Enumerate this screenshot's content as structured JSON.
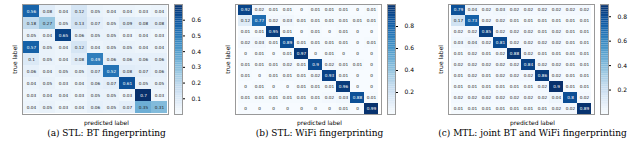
{
  "chart_data": [
    {
      "type": "heatmap",
      "title": "(a) STL: BT fingerprinting",
      "x_label": "predicted label",
      "y_label": "true label",
      "data_labels": true,
      "tick_labels": false,
      "colorbar": {
        "range": [
          0,
          0.7
        ],
        "ticks": [
          0.1,
          0.2,
          0.3,
          0.4,
          0.5,
          0.6
        ]
      },
      "cells": [
        [
          0.56,
          0.08,
          0.04,
          0.12,
          0.05,
          0.04,
          0.04,
          0.03,
          0.04
        ],
        [
          0.18,
          0.27,
          0.05,
          0.13,
          0.07,
          0.05,
          0.09,
          0.08,
          0.08
        ],
        [
          0.05,
          0.04,
          0.65,
          0.06,
          0.05,
          0.05,
          0.03,
          0.04,
          0.03
        ],
        [
          0.57,
          0.05,
          0.04,
          0.12,
          0.04,
          0.05,
          0.05,
          0.04,
          0.04
        ],
        [
          0.1,
          0.05,
          0.04,
          0.08,
          0.49,
          0.06,
          0.06,
          0.06,
          0.06
        ],
        [
          0.06,
          0.04,
          0.05,
          0.05,
          0.07,
          0.52,
          0.08,
          0.07,
          0.06
        ],
        [
          0.04,
          0.05,
          0.03,
          0.04,
          0.06,
          0.07,
          0.61,
          0.05,
          0.05
        ],
        [
          0.03,
          0.04,
          0.04,
          0.03,
          0.05,
          0.05,
          0.03,
          0.7,
          0.03
        ],
        [
          0.04,
          0.05,
          0.03,
          0.04,
          0.06,
          0.05,
          0.07,
          0.35,
          0.31
        ]
      ]
    },
    {
      "type": "heatmap",
      "title": "(b) STL: WiFi fingerprinting",
      "x_label": "predicted label",
      "y_label": "true label",
      "data_labels": true,
      "tick_labels": false,
      "colorbar": {
        "range": [
          0,
          1
        ],
        "ticks": [
          0.2,
          0.4,
          0.6,
          0.8
        ]
      },
      "cells": [
        [
          0.92,
          0.02,
          0.01,
          0.01,
          0,
          0.01,
          0.01,
          0.01,
          0,
          0.01
        ],
        [
          0.12,
          0.77,
          0.02,
          0.03,
          0.01,
          0.01,
          0.01,
          0.01,
          0.01,
          0.01
        ],
        [
          0.01,
          0.01,
          0.95,
          0.01,
          0,
          0.01,
          0,
          0.01,
          0,
          0
        ],
        [
          0.02,
          0.03,
          0.01,
          0.89,
          0.01,
          0.01,
          0.01,
          0.01,
          0,
          0.01
        ],
        [
          0,
          0.01,
          0,
          0.01,
          0.97,
          0,
          0.01,
          0,
          0,
          0
        ],
        [
          0.01,
          0.01,
          0.01,
          0.02,
          0.01,
          0.9,
          0.02,
          0.01,
          0.01,
          0
        ],
        [
          0.01,
          0,
          0.01,
          0.01,
          0.01,
          0.02,
          0.93,
          0.01,
          0,
          0
        ],
        [
          0,
          0.01,
          0,
          0,
          0.01,
          0.01,
          0.01,
          0.96,
          0,
          0
        ],
        [
          0.01,
          0.01,
          0.01,
          0.01,
          0.01,
          0.01,
          0.02,
          0.03,
          0.88,
          0.01
        ],
        [
          0,
          0,
          0,
          0,
          0,
          0,
          0,
          0.01,
          0,
          0.99
        ]
      ]
    },
    {
      "type": "heatmap",
      "title": "(c) MTL: joint BT and WiFi fingerprinting",
      "x_label": "predicted label",
      "y_label": "true label",
      "data_labels": true,
      "tick_labels": false,
      "colorbar": {
        "range": [
          0,
          0.9
        ],
        "ticks": [
          0.2,
          0.4,
          0.6,
          0.8
        ]
      },
      "cells": [
        [
          0.79,
          0.04,
          0.02,
          0.03,
          0.02,
          0.02,
          0.02,
          0.02,
          0.02,
          0.02
        ],
        [
          0.17,
          0.73,
          0.02,
          0.02,
          0.01,
          0.01,
          0.01,
          0.01,
          0.01,
          0.01
        ],
        [
          0.02,
          0.02,
          0.85,
          0.02,
          0.02,
          0.02,
          0.01,
          0.02,
          0.01,
          0.01
        ],
        [
          0.03,
          0.04,
          0.02,
          0.81,
          0.02,
          0.02,
          0.02,
          0.02,
          0.01,
          0.01
        ],
        [
          0.01,
          0.02,
          0.01,
          0.02,
          0.88,
          0.02,
          0.01,
          0.01,
          0.01,
          0.01
        ],
        [
          0.02,
          0.02,
          0.02,
          0.02,
          0.02,
          0.84,
          0.02,
          0.02,
          0.01,
          0.01
        ],
        [
          0.01,
          0.02,
          0.01,
          0.02,
          0.02,
          0.02,
          0.86,
          0.02,
          0.01,
          0.01
        ],
        [
          0.01,
          0.01,
          0.01,
          0.01,
          0.01,
          0.01,
          0.02,
          0.9,
          0.01,
          0.01
        ],
        [
          0.02,
          0.02,
          0.02,
          0.02,
          0.02,
          0.02,
          0.02,
          0.04,
          0.8,
          0.02
        ],
        [
          0.01,
          0.01,
          0.01,
          0.01,
          0.01,
          0.01,
          0.01,
          0.02,
          0.02,
          0.89
        ]
      ]
    }
  ]
}
